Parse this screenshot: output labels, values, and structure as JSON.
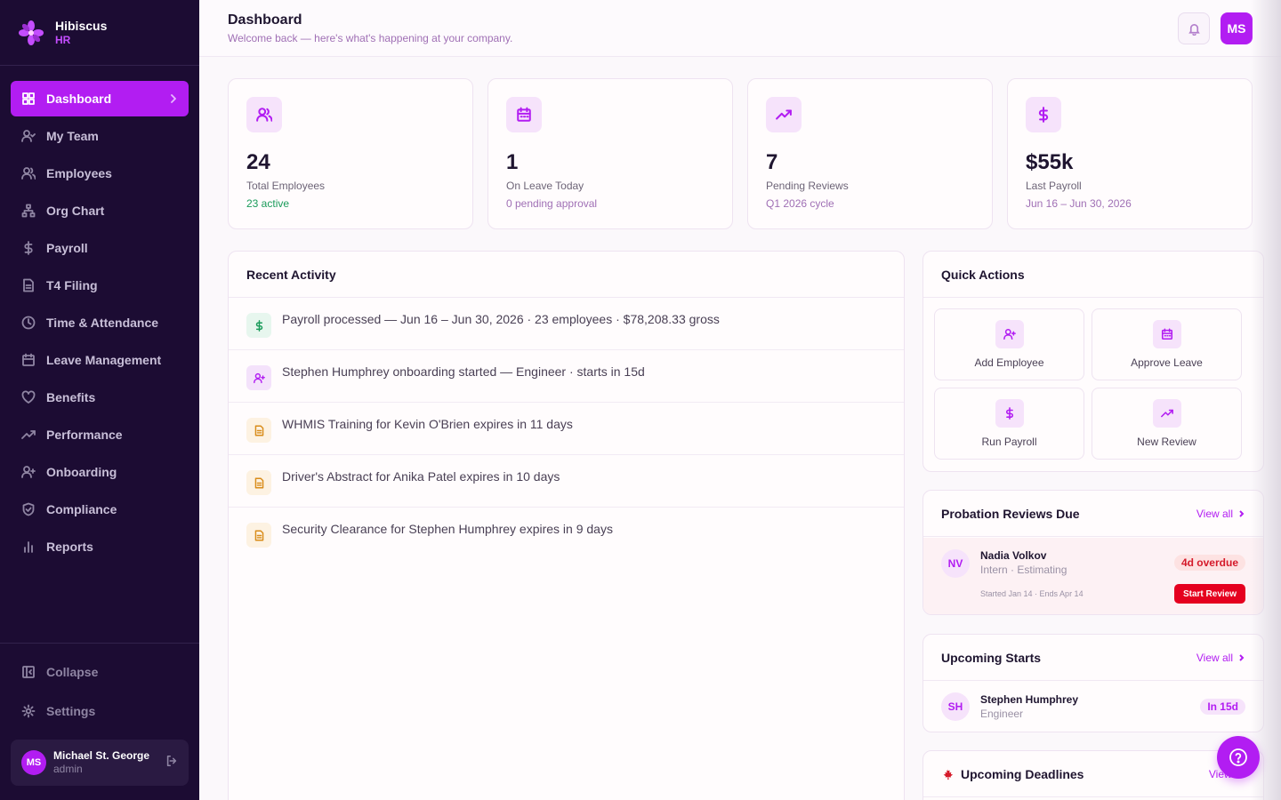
{
  "brand": {
    "name": "Hibiscus",
    "sub": "HR"
  },
  "nav": [
    {
      "label": "Dashboard",
      "icon": "grid-icon",
      "active": true
    },
    {
      "label": "My Team",
      "icon": "user-check-icon"
    },
    {
      "label": "Employees",
      "icon": "users-icon"
    },
    {
      "label": "Org Chart",
      "icon": "org-chart-icon"
    },
    {
      "label": "Payroll",
      "icon": "dollar-icon"
    },
    {
      "label": "T4 Filing",
      "icon": "file-icon"
    },
    {
      "label": "Time & Attendance",
      "icon": "clock-icon"
    },
    {
      "label": "Leave Management",
      "icon": "calendar-icon"
    },
    {
      "label": "Benefits",
      "icon": "heart-icon"
    },
    {
      "label": "Performance",
      "icon": "trending-up-icon"
    },
    {
      "label": "Onboarding",
      "icon": "user-plus-icon"
    },
    {
      "label": "Compliance",
      "icon": "shield-icon"
    },
    {
      "label": "Reports",
      "icon": "bar-chart-icon"
    }
  ],
  "sidebar_bottom": {
    "collapse": "Collapse",
    "settings": "Settings"
  },
  "user": {
    "initials": "MS",
    "name": "Michael St. George",
    "role": "admin"
  },
  "header": {
    "title": "Dashboard",
    "subtitle": "Welcome back — here's what's happening at your company.",
    "avatar": "MS"
  },
  "stats": [
    {
      "value": "24",
      "label": "Total Employees",
      "sub": "23 active",
      "icon": "users-icon"
    },
    {
      "value": "1",
      "label": "On Leave Today",
      "sub": "0 pending approval",
      "icon": "calendar-icon"
    },
    {
      "value": "7",
      "label": "Pending Reviews",
      "sub": "Q1 2026 cycle",
      "icon": "trending-up-icon"
    },
    {
      "value": "$55k",
      "label": "Last Payroll",
      "sub": "Jun 16 – Jun 30, 2026",
      "icon": "dollar-icon"
    }
  ],
  "recent_activity": {
    "title": "Recent Activity",
    "items": [
      {
        "text": "Payroll processed — Jun 16 – Jun 30, 2026 · 23 employees · $78,208.33 gross",
        "icon": "dollar-icon"
      },
      {
        "text": "Stephen Humphrey onboarding started — Engineer · starts in 15d",
        "icon": "user-plus-icon"
      },
      {
        "text": "WHMIS Training for Kevin O'Brien expires in 11 days",
        "icon": "document-icon"
      },
      {
        "text": "Driver's Abstract for Anika Patel expires in 10 days",
        "icon": "document-icon"
      },
      {
        "text": "Security Clearance for Stephen Humphrey expires in 9 days",
        "icon": "document-icon"
      }
    ]
  },
  "quick_actions": {
    "title": "Quick Actions",
    "items": [
      {
        "label": "Add Employee",
        "icon": "user-plus-icon"
      },
      {
        "label": "Approve Leave",
        "icon": "calendar-icon"
      },
      {
        "label": "Run Payroll",
        "icon": "dollar-icon"
      },
      {
        "label": "New Review",
        "icon": "trending-up-icon"
      }
    ]
  },
  "probation": {
    "title": "Probation Reviews Due",
    "view_all": "View all",
    "item": {
      "initials": "NV",
      "name": "Nadia Volkov",
      "role": "Intern · Estimating",
      "badge": "4d overdue",
      "dates": "Started Jan 14 · Ends Apr 14",
      "button": "Start Review"
    }
  },
  "upcoming_starts": {
    "title": "Upcoming Starts",
    "view_all": "View all",
    "item": {
      "initials": "SH",
      "name": "Stephen Humphrey",
      "role": "Engineer",
      "badge": "In 15d"
    }
  },
  "deadlines": {
    "title": "Upcoming Deadlines",
    "view_all": "View all"
  },
  "colors": {
    "accent": "#b21df2",
    "sidebar": "#1c0c33",
    "danger": "#e5001f",
    "success": "#1a9b5a"
  }
}
